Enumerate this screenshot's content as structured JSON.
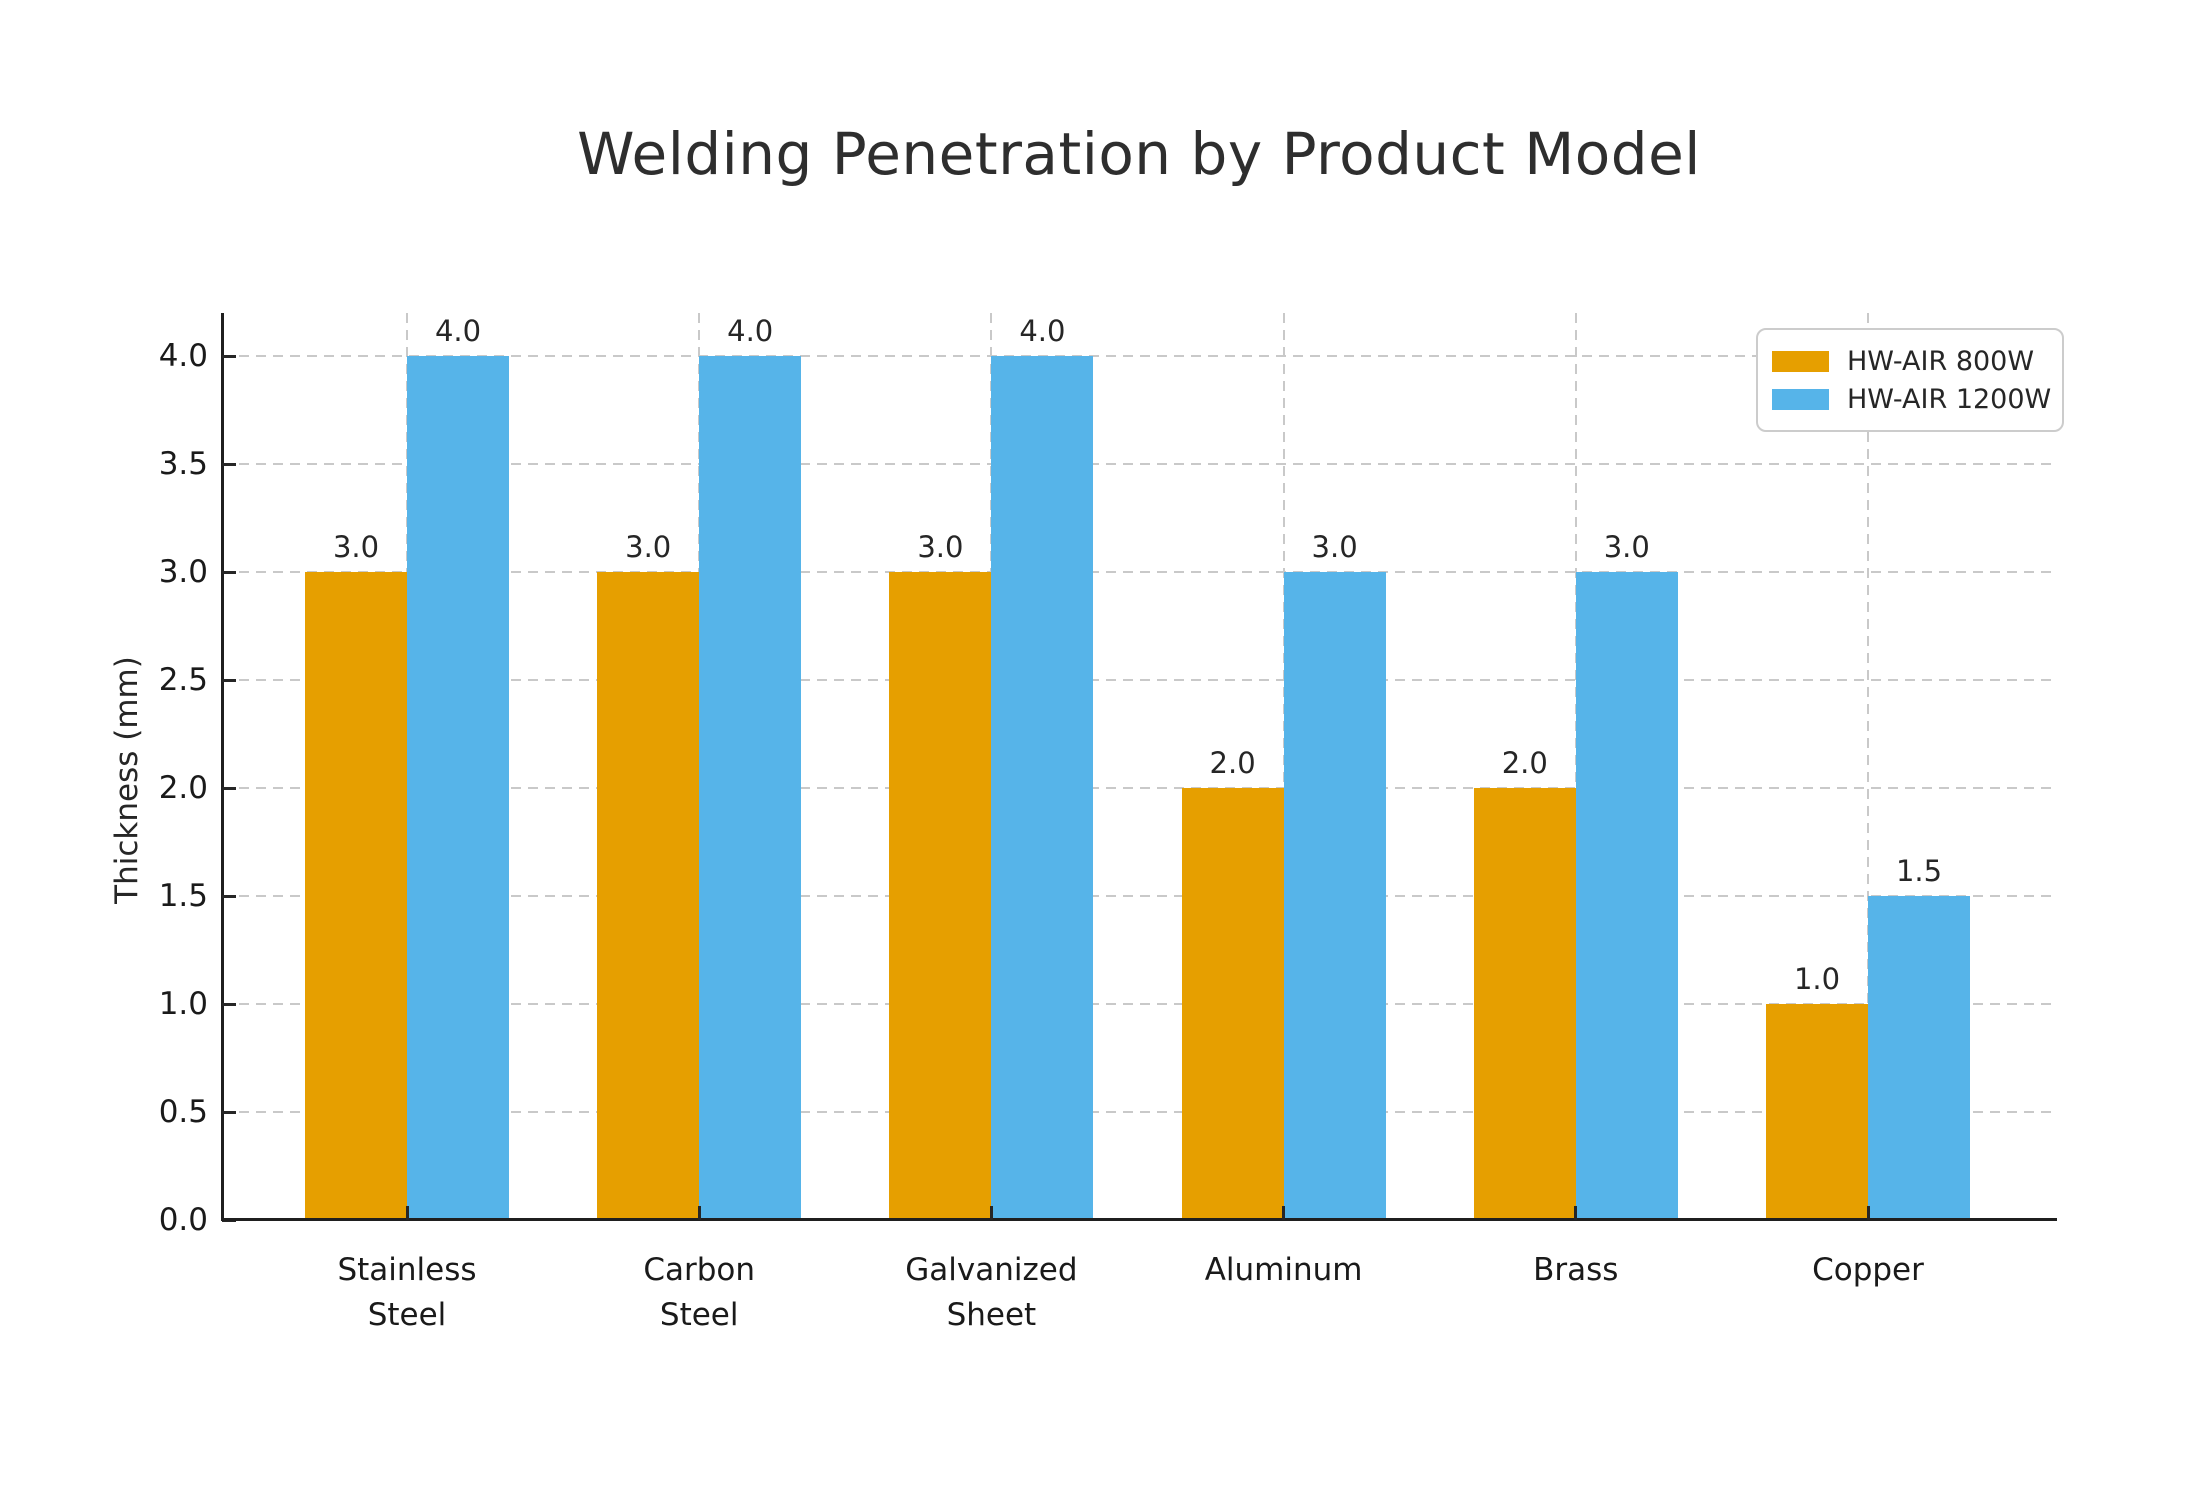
{
  "title": "Welding Penetration by Product Model",
  "chart_data": {
    "type": "bar",
    "title": "Welding Penetration by Product Model",
    "categories": [
      "Stainless\nSteel",
      "Carbon\nSteel",
      "Galvanized\nSheet",
      "Aluminum",
      "Brass",
      "Copper"
    ],
    "series": [
      {
        "name": "HW-AIR 800W",
        "color": "#E69F00",
        "values": [
          3.0,
          3.0,
          3.0,
          2.0,
          2.0,
          1.0
        ]
      },
      {
        "name": "HW-AIR 1200W",
        "color": "#56B4E9",
        "values": [
          4.0,
          4.0,
          4.0,
          3.0,
          3.0,
          1.5
        ]
      }
    ],
    "xlabel": "",
    "ylabel": "Thickness (mm)",
    "ylim": [
      0.0,
      4.2
    ],
    "yticks": [
      0.0,
      0.5,
      1.0,
      1.5,
      2.0,
      2.5,
      3.0,
      3.5,
      4.0
    ],
    "grid": "dashed horizontal and vertical",
    "legend_position": "upper right",
    "bar_value_labels": true
  },
  "colors": {
    "series_800w": "#E69F00",
    "series_1200w": "#56B4E9",
    "grid": "#c9c9c9",
    "axis": "#1f1f1f",
    "text": "#262626",
    "background": "#ffffff"
  }
}
